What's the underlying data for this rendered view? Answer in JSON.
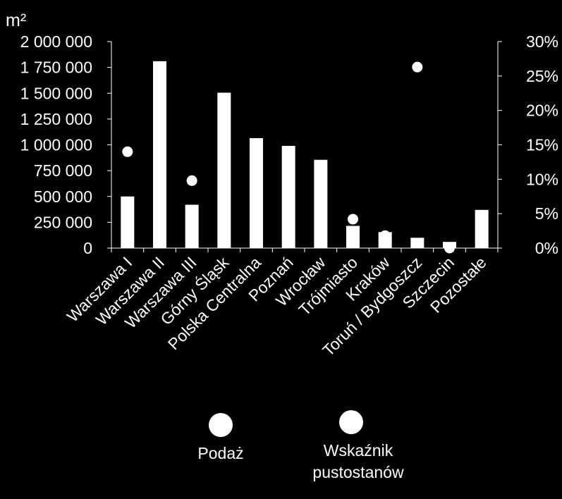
{
  "chart_data": {
    "type": "bar",
    "y_unit_label": "m²",
    "categories": [
      "Warszawa I",
      "Warszawa II",
      "Warszawa III",
      "Górny Śląsk",
      "Polska Centralna",
      "Poznań",
      "Wrocław",
      "Trójmiasto",
      "Kraków",
      "Toruń / Bydgoszcz",
      "Szczecin",
      "Pozostałe"
    ],
    "series": [
      {
        "name": "Podaż",
        "axis": "left",
        "type": "bar",
        "values": [
          500000,
          1810000,
          420000,
          1505000,
          1065000,
          990000,
          855000,
          215000,
          155000,
          100000,
          60000,
          370000
        ]
      },
      {
        "name": "Wskaźnik pustostanów",
        "axis": "right",
        "type": "scatter",
        "values": [
          14.0,
          null,
          9.8,
          null,
          null,
          null,
          null,
          4.2,
          1.8,
          26.3,
          0.0,
          null
        ]
      }
    ],
    "y_left": {
      "range": [
        0,
        2000000
      ],
      "ticks": [
        0,
        250000,
        500000,
        750000,
        1000000,
        1250000,
        1500000,
        1750000,
        2000000
      ],
      "tick_labels": [
        "0",
        "250 000",
        "500 000",
        "750 000",
        "1 000 000",
        "1 250 000",
        "1 500 000",
        "1 750 000",
        "2 000 000"
      ]
    },
    "y_right": {
      "range": [
        0,
        30
      ],
      "ticks": [
        0,
        5,
        10,
        15,
        20,
        25,
        30
      ],
      "tick_labels": [
        "0%",
        "5%",
        "10%",
        "15%",
        "20%",
        "25%",
        "30%"
      ]
    },
    "legend": {
      "placement": "bottom",
      "items": [
        {
          "label_lines": [
            "Podaż"
          ]
        },
        {
          "label_lines": [
            "Wskaźnik",
            "pustostanów"
          ]
        }
      ]
    },
    "grid": false,
    "colors": {
      "background": "#000000",
      "bar": "#ffffff",
      "marker": "#ffffff",
      "axis": "#ffffff",
      "text": "#ffffff"
    }
  }
}
